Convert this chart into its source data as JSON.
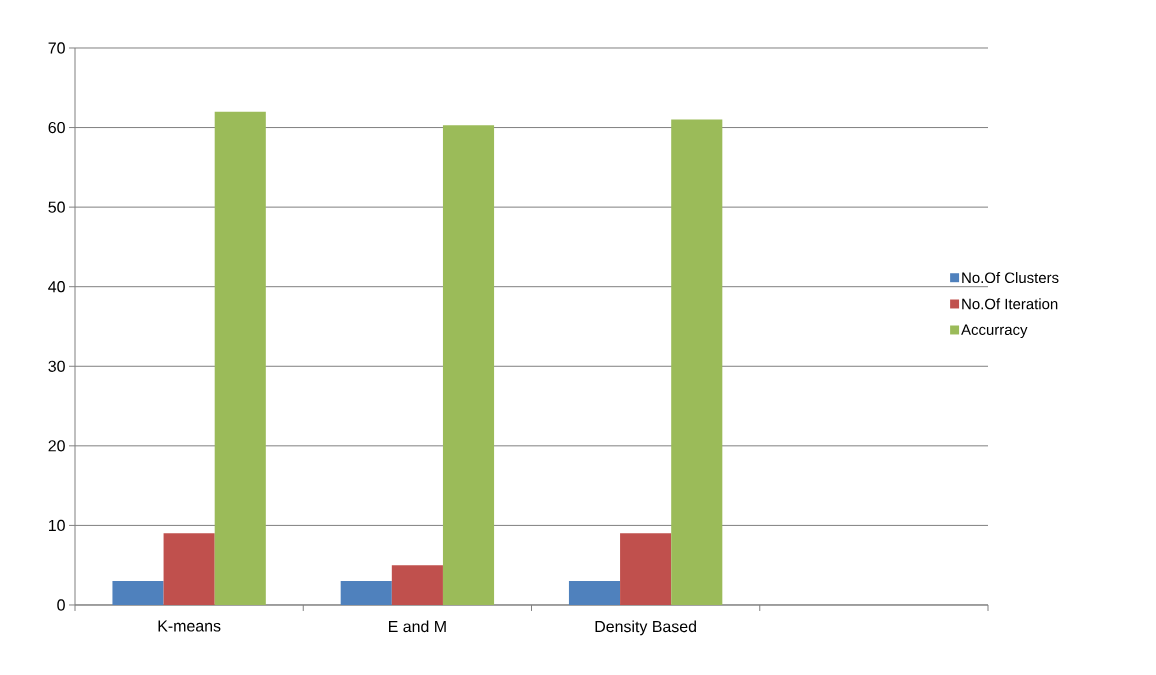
{
  "chart_data": {
    "type": "bar",
    "categories": [
      "K-means",
      "E and M",
      "Density Based",
      null
    ],
    "series": [
      {
        "name": "No.Of Clusters",
        "color": "#4f81bd",
        "values": [
          3,
          3,
          3,
          null
        ]
      },
      {
        "name": "No.Of Iteration",
        "color": "#c0504d",
        "values": [
          9,
          5,
          9,
          null
        ]
      },
      {
        "name": "Accurracy",
        "color": "#9bbb59",
        "values": [
          62,
          60.3,
          61,
          null
        ]
      }
    ],
    "ylim": [
      0,
      70
    ],
    "yticks": [
      0,
      10,
      20,
      30,
      40,
      50,
      60,
      70
    ],
    "grid": "y",
    "legend": "right"
  }
}
